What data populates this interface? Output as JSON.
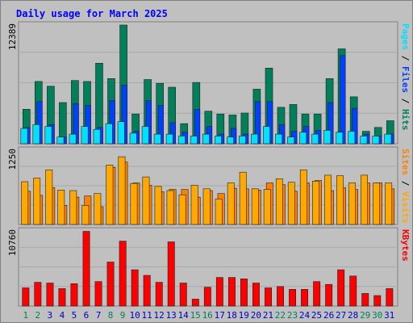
{
  "title": "Daily usage for March 2025",
  "colors": {
    "background": "#c0c0c0",
    "hits": "#00805a",
    "files": "#0040ff",
    "pages": "#00e0ff",
    "visits": "#ffa800",
    "sites": "#ff8000",
    "kbytes": "#ff0000",
    "weekend_label": "#00805a",
    "weekday_label": "#0000c0"
  },
  "chart_data": [
    {
      "type": "bar",
      "panel": "hits-files-pages",
      "ymax_label": "12389",
      "ylim": [
        0,
        12389
      ],
      "side_label": [
        "Pages",
        "Files",
        "Hits"
      ],
      "categories": [
        "1",
        "2",
        "3",
        "4",
        "5",
        "6",
        "7",
        "8",
        "9",
        "10",
        "11",
        "12",
        "13",
        "14",
        "15",
        "16",
        "17",
        "18",
        "19",
        "20",
        "21",
        "22",
        "23",
        "24",
        "25",
        "26",
        "27",
        "28",
        "29",
        "30",
        "31"
      ],
      "series": [
        {
          "name": "Hits",
          "values": [
            3600,
            6500,
            6000,
            4300,
            6600,
            6500,
            8400,
            6800,
            12389,
            3100,
            6700,
            6300,
            5900,
            2100,
            6400,
            3400,
            3100,
            3000,
            3200,
            5700,
            7900,
            3800,
            4100,
            3100,
            3100,
            6800,
            9900,
            4900,
            1300,
            1700,
            2400
          ]
        },
        {
          "name": "Files",
          "values": [
            1700,
            4400,
            2000,
            700,
            4200,
            4000,
            1700,
            4500,
            6100,
            1300,
            4500,
            4000,
            2200,
            1200,
            3600,
            1800,
            1000,
            1600,
            1000,
            4400,
            4400,
            2000,
            1300,
            1800,
            1400,
            4300,
            9200,
            3700,
            1000,
            800,
            1000
          ]
        },
        {
          "name": "Pages",
          "values": [
            1600,
            2000,
            1800,
            700,
            1000,
            1800,
            1500,
            2100,
            2300,
            1100,
            1800,
            1000,
            1000,
            800,
            800,
            1000,
            800,
            700,
            800,
            1000,
            1800,
            1000,
            700,
            1200,
            1000,
            1400,
            1200,
            1300,
            800,
            800,
            1000
          ]
        }
      ],
      "weekend_days": [
        1,
        2,
        8,
        9,
        15,
        16,
        22,
        23,
        29,
        30
      ]
    },
    {
      "type": "bar",
      "panel": "visits-sites",
      "ymax_label": "1250",
      "ylim": [
        0,
        1250
      ],
      "side_label": [
        "Sites",
        "Visits"
      ],
      "series": [
        {
          "name": "Visits",
          "values": [
            720,
            780,
            920,
            580,
            570,
            320,
            520,
            1000,
            1140,
            690,
            800,
            640,
            570,
            500,
            660,
            600,
            430,
            700,
            880,
            600,
            590,
            770,
            710,
            920,
            730,
            830,
            820,
            700,
            830,
            700,
            700
          ]
        },
        {
          "name": "Sites",
          "values": [
            560,
            490,
            620,
            320,
            460,
            480,
            300,
            960,
            1050,
            700,
            660,
            550,
            590,
            590,
            460,
            570,
            520,
            610,
            600,
            580,
            700,
            670,
            560,
            700,
            740,
            570,
            620,
            590,
            700,
            700,
            600
          ]
        }
      ]
    },
    {
      "type": "bar",
      "panel": "kbytes",
      "ymax_label": "10760",
      "ylim": [
        0,
        10760
      ],
      "side_label": [
        "KBytes"
      ],
      "series": [
        {
          "name": "KBytes",
          "values": [
            2600,
            3400,
            3300,
            2500,
            3200,
            10700,
            3500,
            6300,
            9300,
            5200,
            4400,
            3400,
            9200,
            3300,
            1000,
            2700,
            4100,
            4100,
            3900,
            3300,
            2600,
            2800,
            2400,
            2400,
            3500,
            3100,
            5200,
            4300,
            1800,
            1500,
            2500
          ]
        }
      ]
    }
  ]
}
